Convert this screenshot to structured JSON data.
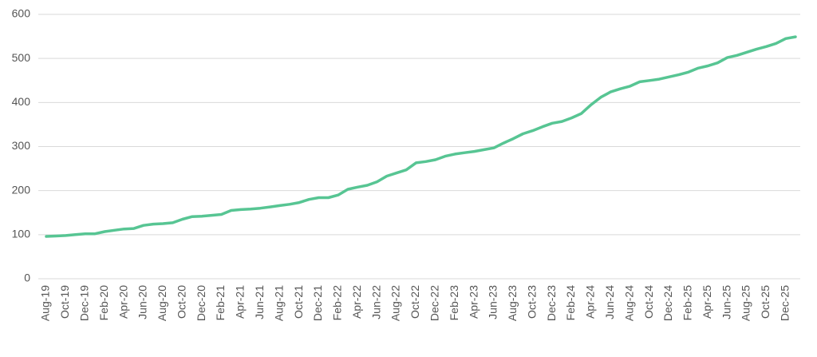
{
  "chart_data": {
    "type": "line",
    "categories": [
      "Aug-19",
      null,
      "Oct-19",
      null,
      "Dec-19",
      null,
      "Feb-20",
      null,
      "Apr-20",
      null,
      "Jun-20",
      null,
      "Aug-20",
      null,
      "Oct-20",
      null,
      "Dec-20",
      null,
      "Feb-21",
      null,
      "Apr-21",
      null,
      "Jun-21",
      null,
      "Aug-21",
      null,
      "Oct-21",
      null,
      "Dec-21",
      null,
      "Feb-22",
      null,
      "Apr-22",
      null,
      "Jun-22",
      null,
      "Aug-22",
      null,
      "Oct-22",
      null,
      "Dec-22",
      null,
      "Feb-23",
      null,
      "Apr-23",
      null,
      "Jun-23",
      null,
      "Aug-23",
      null,
      "Oct-23",
      null,
      "Dec-23",
      null,
      "Feb-24",
      null,
      "Apr-24",
      null,
      "Jun-24",
      null,
      "Aug-24",
      null,
      "Oct-24",
      null,
      "Dec-24",
      null,
      "Feb-25",
      null,
      "Apr-25",
      null,
      "Jun-25",
      null,
      "Aug-25",
      null,
      "Oct-25",
      null,
      "Dec-25",
      null
    ],
    "values": [
      96,
      97,
      98,
      100,
      102,
      102,
      107,
      110,
      113,
      114,
      121,
      124,
      125,
      127,
      135,
      141,
      142,
      144,
      146,
      155,
      157,
      158,
      160,
      163,
      166,
      169,
      173,
      180,
      184,
      184,
      190,
      203,
      208,
      212,
      220,
      233,
      240,
      247,
      263,
      266,
      270,
      278,
      283,
      286,
      289,
      293,
      297,
      308,
      318,
      329,
      336,
      345,
      353,
      357,
      365,
      375,
      395,
      412,
      424,
      431,
      437,
      447,
      450,
      453,
      458,
      463,
      469,
      478,
      483,
      490,
      502,
      507,
      514,
      521,
      527,
      534,
      545,
      549
    ],
    "color": "#57c593",
    "ylim": [
      0,
      600
    ],
    "yticks": [
      0,
      100,
      200,
      300,
      400,
      500,
      600
    ],
    "grid": true
  }
}
